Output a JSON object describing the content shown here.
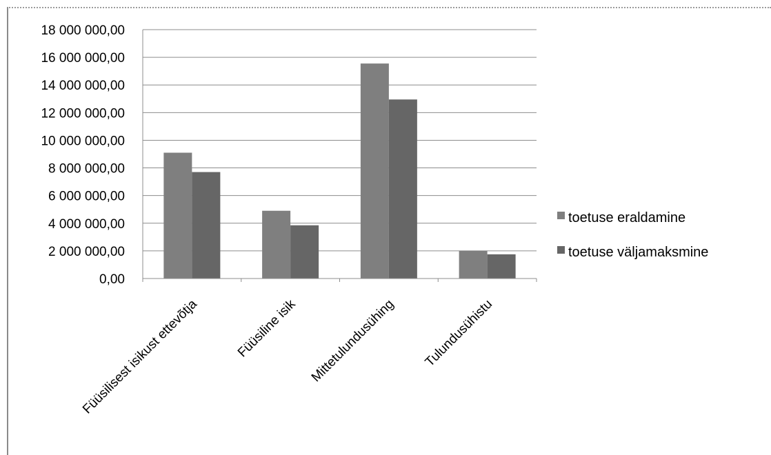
{
  "chart_data": {
    "type": "bar",
    "title": "",
    "xlabel": "",
    "ylabel": "",
    "categories": [
      "Füüsilisest isikust ettevõtja",
      "Füüsiline isik",
      "Mittetulundusühing",
      "Tulundusühistu"
    ],
    "series": [
      {
        "name": "toetuse eraldamine",
        "color": "#7f7f7f",
        "values": [
          9100000,
          4900000,
          15550000,
          2000000
        ]
      },
      {
        "name": "toetuse väljamaksmine",
        "color": "#666666",
        "values": [
          7700000,
          3850000,
          12950000,
          1750000
        ]
      }
    ],
    "ylim": [
      0,
      18000000
    ],
    "y_ticks": [
      "0,00",
      "2 000 000,00",
      "4 000 000,00",
      "6 000 000,00",
      "8 000 000,00",
      "10 000 000,00",
      "12 000 000,00",
      "14 000 000,00",
      "16 000 000,00",
      "18 000 000,00"
    ],
    "grid": true,
    "legend_position": "right"
  }
}
